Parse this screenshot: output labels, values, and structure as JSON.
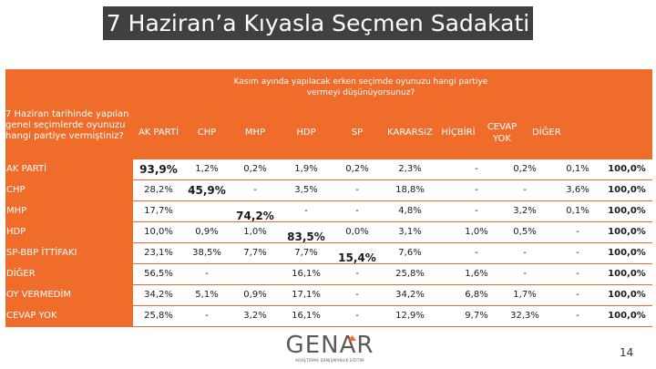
{
  "title": "7 Haziran’a Kıyasla Seçmen Sadakati",
  "question": "Kasım ayında yapılacak erken seçimde oyunuzu hangi partiye vermeyi düşünüyorsunuz?",
  "row_question": "7 Haziran tarihinde yapılan genel seçimlerde oyunuzu hangi partiye vermiştiniz?",
  "columns": [
    "AK PARTİ",
    "CHP",
    "MHP",
    "HDP",
    "SP",
    "KARARSIZ",
    "HİÇBİRİ",
    "CEVAP YOK",
    "DİĞER"
  ],
  "rows": [
    {
      "label": "AK PARTİ",
      "values": [
        "93,9%",
        "1,2%",
        "0,2%",
        "1,9%",
        "0,2%",
        "2,3%",
        "-",
        "0,2%",
        "0,1%"
      ],
      "total": "100,0%"
    },
    {
      "label": "CHP",
      "values": [
        "28,2%",
        "45,9%",
        "-",
        "3,5%",
        "-",
        "18,8%",
        "-",
        "-",
        "3,6%"
      ],
      "total": "100,0%"
    },
    {
      "label": "MHP",
      "values": [
        "17,7%",
        "",
        "74,2%",
        "-",
        "-",
        "4,8%",
        "-",
        "3,2%",
        "0,1%"
      ],
      "total": "100,0%"
    },
    {
      "label": "HDP",
      "values": [
        "10,0%",
        "0,9%",
        "1,0%",
        "83,5%",
        "0,0%",
        "3,1%",
        "1,0%",
        "0,5%",
        "-"
      ],
      "total": "100,0%"
    },
    {
      "label": "SP-BBP İTTİFAKI",
      "values": [
        "23,1%",
        "38,5%",
        "7,7%",
        "7,7%",
        "15,4%",
        "7,6%",
        "-",
        "-",
        "-"
      ],
      "total": "100,0%"
    },
    {
      "label": "DİĞER",
      "values": [
        "56,5%",
        "-",
        "",
        "16,1%",
        "-",
        "25,8%",
        "1,6%",
        "-",
        "-"
      ],
      "total": "100,0%"
    },
    {
      "label": "OY VERMEDİM",
      "values": [
        "34,2%",
        "5,1%",
        "0,9%",
        "17,1%",
        "-",
        "34,2%",
        "6,8%",
        "1,7%",
        "-"
      ],
      "total": "100,0%"
    },
    {
      "label": "CEVAP YOK",
      "values": [
        "25,8%",
        "-",
        "3,2%",
        "16,1%",
        "-",
        "12,9%",
        "9,7%",
        "32,3%",
        "-"
      ],
      "total": "100,0%"
    }
  ],
  "logo": {
    "word": "GENAR",
    "tagline": "ARAŞTIRMA DANIŞMANLIK EĞİTİM"
  },
  "page_number": "14",
  "colors": {
    "accent": "#ef6c2b",
    "title_bg": "#404040"
  }
}
